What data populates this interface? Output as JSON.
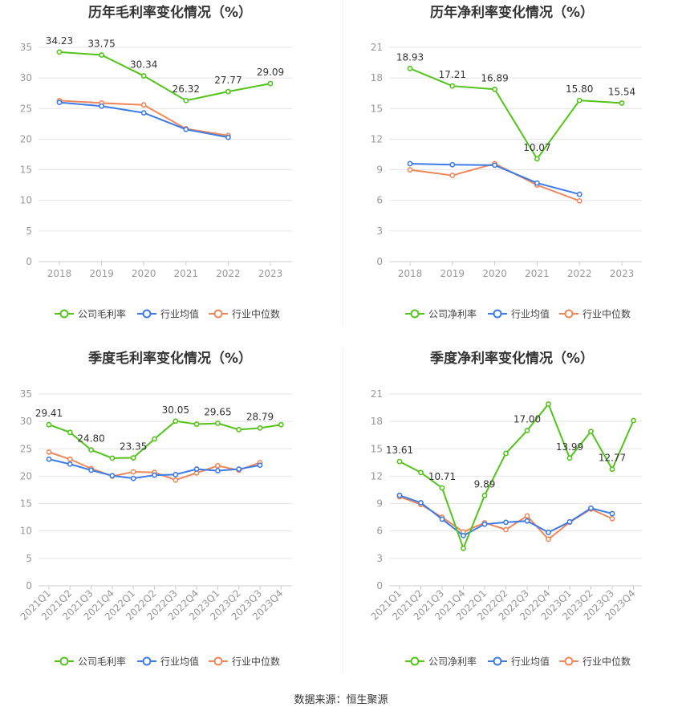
{
  "colors": {
    "company": "#52c41a",
    "industry_avg": "#3d7be8",
    "industry_median": "#f0875a",
    "grid": "#e4e4e4",
    "axis_text": "#999999",
    "label_text": "#333333",
    "title_text": "#333333"
  },
  "source_text": "数据来源：恒生聚源",
  "chart_data": [
    {
      "type": "line",
      "title": "历年毛利率变化情况（%）",
      "categories": [
        "2018",
        "2019",
        "2020",
        "2021",
        "2022",
        "2023"
      ],
      "ylim": [
        0,
        35
      ],
      "yticks": [
        0,
        5,
        10,
        15,
        20,
        25,
        30,
        35
      ],
      "tick_rotation": 0,
      "legend": [
        "公司毛利率",
        "行业均值",
        "行业中位数"
      ],
      "series": [
        {
          "name": "公司毛利率",
          "role": "company",
          "values": [
            34.23,
            33.75,
            30.34,
            26.32,
            27.77,
            29.09
          ],
          "labels": [
            "34.23",
            "33.75",
            "30.34",
            "26.32",
            "27.77",
            "29.09"
          ]
        },
        {
          "name": "行业均值",
          "role": "industry_avg",
          "values": [
            26.0,
            25.4,
            24.3,
            21.6,
            20.3,
            null
          ]
        },
        {
          "name": "行业中位数",
          "role": "industry_median",
          "values": [
            26.3,
            25.9,
            25.6,
            21.7,
            20.6,
            null
          ]
        }
      ]
    },
    {
      "type": "line",
      "title": "历年净利率变化情况（%）",
      "categories": [
        "2018",
        "2019",
        "2020",
        "2021",
        "2022",
        "2023"
      ],
      "ylim": [
        0,
        21
      ],
      "yticks": [
        0,
        3,
        6,
        9,
        12,
        15,
        18,
        21
      ],
      "tick_rotation": 0,
      "legend": [
        "公司净利率",
        "行业均值",
        "行业中位数"
      ],
      "series": [
        {
          "name": "公司净利率",
          "role": "company",
          "values": [
            18.93,
            17.21,
            16.89,
            10.07,
            15.8,
            15.54
          ],
          "labels": [
            "18.93",
            "17.21",
            "16.89",
            "10.07",
            "15.80",
            "15.54"
          ]
        },
        {
          "name": "行业均值",
          "role": "industry_avg",
          "values": [
            9.6,
            9.5,
            9.45,
            7.7,
            6.6,
            null
          ]
        },
        {
          "name": "行业中位数",
          "role": "industry_median",
          "values": [
            9.0,
            8.45,
            9.6,
            7.5,
            5.95,
            null
          ]
        }
      ]
    },
    {
      "type": "line",
      "title": "季度毛利率变化情况（%）",
      "categories": [
        "2021Q1",
        "2021Q2",
        "2021Q3",
        "2021Q4",
        "2022Q1",
        "2022Q2",
        "2022Q3",
        "2022Q4",
        "2023Q1",
        "2023Q2",
        "2023Q3",
        "2023Q4"
      ],
      "ylim": [
        0,
        35
      ],
      "yticks": [
        0,
        5,
        10,
        15,
        20,
        25,
        30,
        35
      ],
      "tick_rotation": -45,
      "legend": [
        "公司毛利率",
        "行业均值",
        "行业中位数"
      ],
      "series": [
        {
          "name": "公司毛利率",
          "role": "company",
          "values": [
            29.41,
            28.0,
            24.8,
            23.3,
            23.35,
            26.8,
            30.05,
            29.5,
            29.65,
            28.5,
            28.79,
            29.4
          ],
          "labels": [
            "29.41",
            "",
            "24.80",
            "",
            "23.35",
            "",
            "30.05",
            "",
            "29.65",
            "",
            "28.79",
            ""
          ]
        },
        {
          "name": "行业均值",
          "role": "industry_avg",
          "values": [
            23.1,
            22.2,
            21.1,
            20.1,
            19.6,
            20.2,
            20.3,
            21.3,
            21.0,
            21.3,
            22.0,
            null
          ]
        },
        {
          "name": "行业中位数",
          "role": "industry_median",
          "values": [
            24.4,
            23.1,
            21.4,
            20.0,
            20.8,
            20.7,
            19.3,
            20.6,
            21.9,
            21.1,
            22.5,
            null
          ]
        }
      ]
    },
    {
      "type": "line",
      "title": "季度净利率变化情况（%）",
      "categories": [
        "2021Q1",
        "2021Q2",
        "2021Q3",
        "2021Q4",
        "2022Q1",
        "2022Q2",
        "2022Q3",
        "2022Q4",
        "2023Q1",
        "2023Q2",
        "2023Q3",
        "2023Q4"
      ],
      "ylim": [
        0,
        21
      ],
      "yticks": [
        0,
        3,
        6,
        9,
        12,
        15,
        18,
        21
      ],
      "tick_rotation": -45,
      "legend": [
        "公司净利率",
        "行业均值",
        "行业中位数"
      ],
      "series": [
        {
          "name": "公司净利率",
          "role": "company",
          "values": [
            13.61,
            12.4,
            10.71,
            4.1,
            9.89,
            14.5,
            17.0,
            19.9,
            13.99,
            16.9,
            12.77,
            18.1
          ],
          "labels": [
            "13.61",
            "",
            "10.71",
            "",
            "9.89",
            "",
            "17.00",
            "",
            "13.99",
            "",
            "12.77",
            ""
          ]
        },
        {
          "name": "行业均值",
          "role": "industry_avg",
          "values": [
            9.9,
            9.1,
            7.3,
            5.5,
            6.75,
            6.95,
            7.1,
            5.85,
            7.0,
            8.5,
            7.9,
            null
          ]
        },
        {
          "name": "行业中位数",
          "role": "industry_median",
          "values": [
            9.75,
            8.9,
            7.5,
            5.9,
            6.9,
            6.15,
            7.65,
            5.1,
            6.95,
            8.4,
            7.35,
            null
          ]
        }
      ]
    }
  ]
}
